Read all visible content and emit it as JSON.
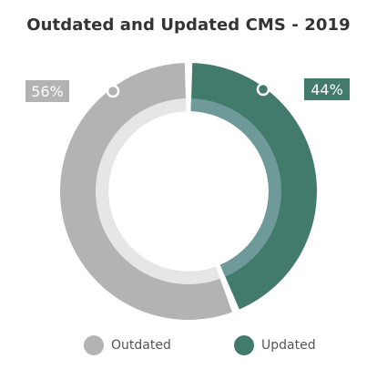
{
  "chart_data": {
    "type": "pie",
    "title": "Outdated and Updated CMS - 2019",
    "categories": [
      "Outdated",
      "Updated"
    ],
    "values": [
      56,
      44
    ],
    "value_labels": [
      "56%",
      "44%"
    ],
    "colors": [
      "#b3b3b3",
      "#427a6c"
    ],
    "inner_colors": [
      "#e6e6e6",
      "#6f9a9a"
    ],
    "legend_position": "bottom"
  }
}
